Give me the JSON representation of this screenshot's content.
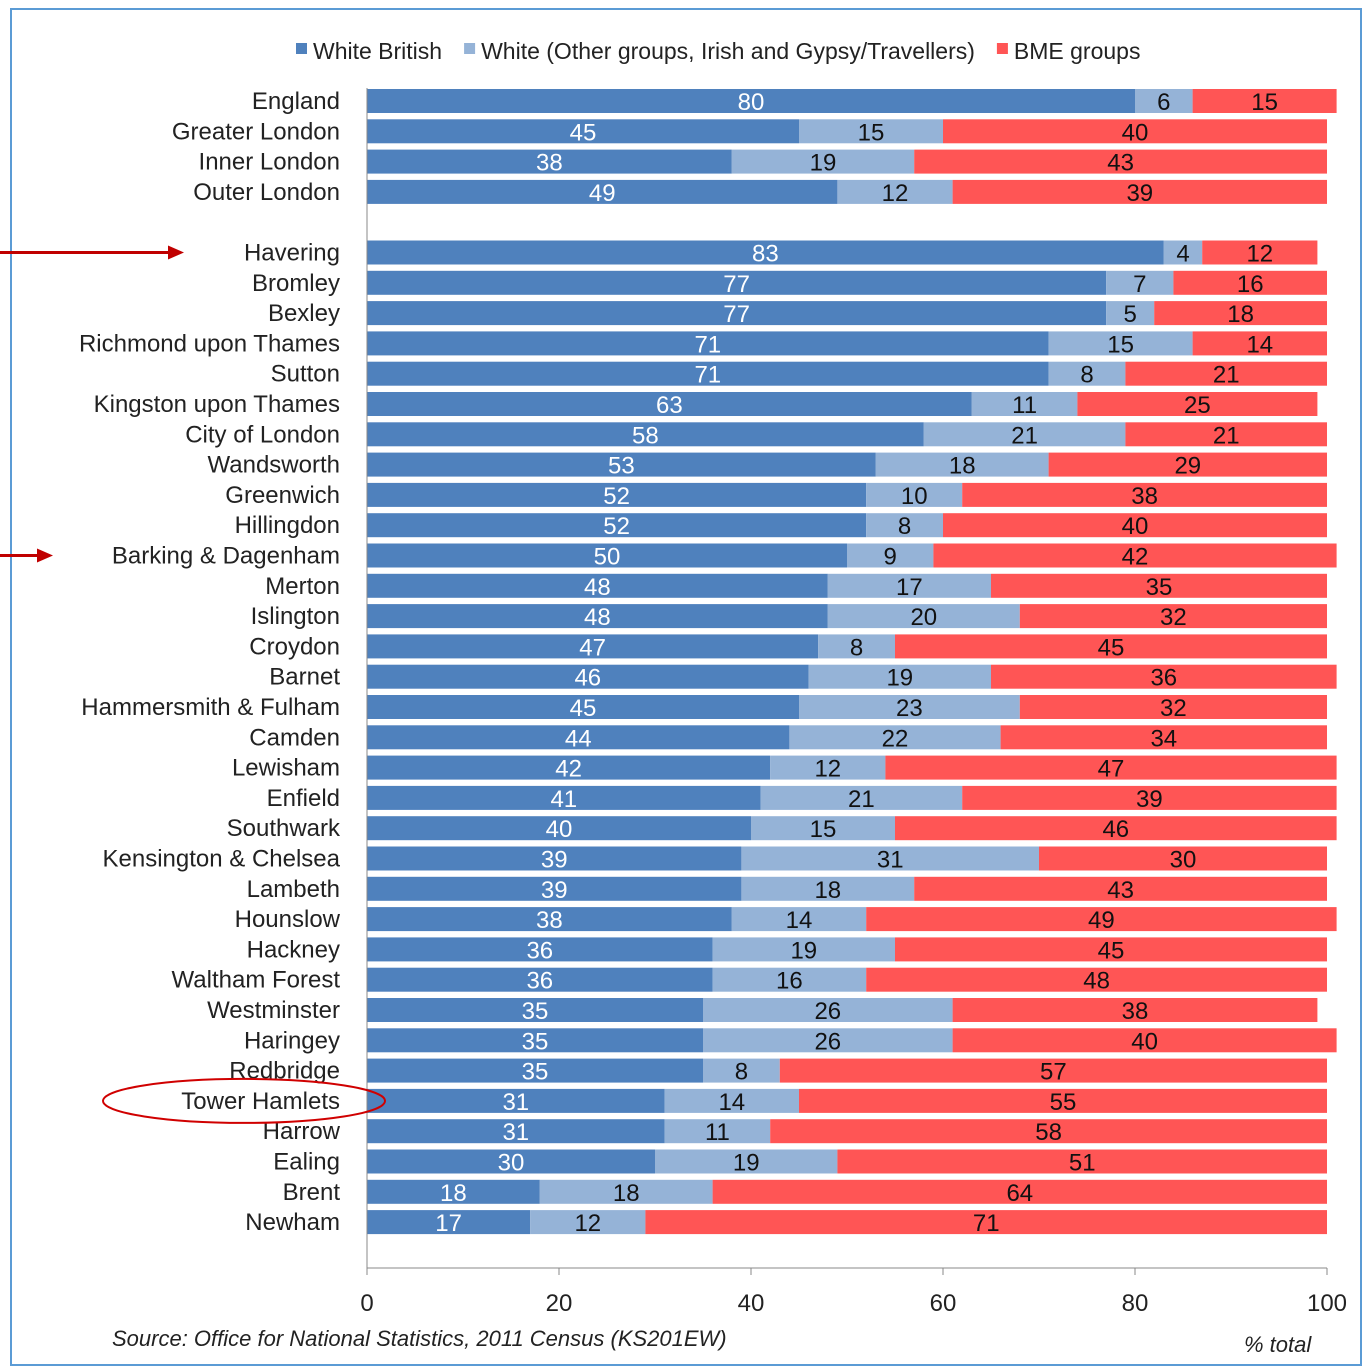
{
  "chart_data": {
    "type": "bar",
    "orientation": "horizontal",
    "stacked": true,
    "legend_position": "top",
    "xlim": [
      0,
      100
    ],
    "x_ticks": [
      0,
      20,
      40,
      60,
      80,
      100
    ],
    "xlabel": "% total",
    "source": "Source: Office for National Statistics, 2011 Census (KS201EW)",
    "categories": [
      "England",
      "Greater London",
      "Inner London",
      "Outer London",
      "",
      "Havering",
      "Bromley",
      "Bexley",
      "Richmond upon Thames",
      "Sutton",
      "Kingston upon Thames",
      "City of London",
      "Wandsworth",
      "Greenwich",
      "Hillingdon",
      "Barking & Dagenham",
      "Merton",
      "Islington",
      "Croydon",
      "Barnet",
      "Hammersmith & Fulham",
      "Camden",
      "Lewisham",
      "Enfield",
      "Southwark",
      "Kensington & Chelsea",
      "Lambeth",
      "Hounslow",
      "Hackney",
      "Waltham Forest",
      "Westminster",
      "Haringey",
      "Redbridge",
      "Tower Hamlets",
      "Harrow",
      "Ealing",
      "Brent",
      "Newham"
    ],
    "series": [
      {
        "name": "White British",
        "color": "#4f81bd",
        "values": [
          80,
          45,
          38,
          49,
          null,
          83,
          77,
          77,
          71,
          71,
          63,
          58,
          53,
          52,
          52,
          50,
          48,
          48,
          47,
          46,
          45,
          44,
          42,
          41,
          40,
          39,
          39,
          38,
          36,
          36,
          35,
          35,
          35,
          31,
          31,
          30,
          18,
          17
        ]
      },
      {
        "name": "White (Other groups, Irish and Gypsy/Travellers)",
        "color": "#95b3d7",
        "values": [
          6,
          15,
          19,
          12,
          null,
          4,
          7,
          5,
          15,
          8,
          11,
          21,
          18,
          10,
          8,
          9,
          17,
          20,
          8,
          19,
          23,
          22,
          12,
          21,
          15,
          31,
          18,
          14,
          19,
          16,
          26,
          26,
          8,
          14,
          11,
          19,
          18,
          12
        ]
      },
      {
        "name": "BME groups",
        "color": "#ff5555",
        "values": [
          15,
          40,
          43,
          39,
          null,
          12,
          16,
          18,
          14,
          21,
          25,
          21,
          29,
          38,
          40,
          42,
          35,
          32,
          45,
          36,
          32,
          34,
          47,
          39,
          46,
          30,
          43,
          49,
          45,
          48,
          38,
          40,
          57,
          55,
          58,
          51,
          64,
          71
        ]
      }
    ],
    "highlighted_with_arrow": [
      "Havering",
      "Barking & Dagenham"
    ],
    "highlighted_with_circle": [
      "Tower Hamlets"
    ]
  }
}
